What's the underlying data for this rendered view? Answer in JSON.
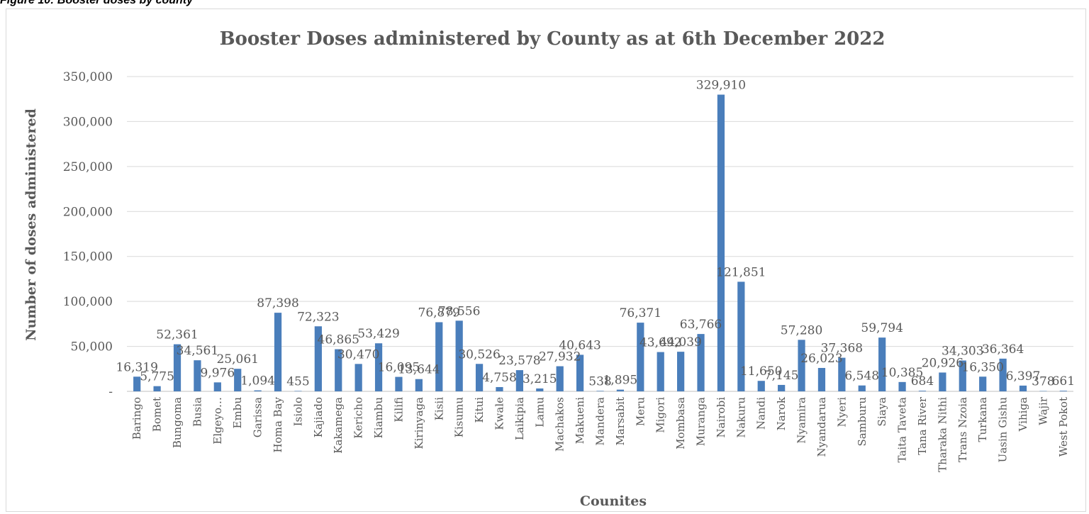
{
  "figure_caption": "Figure 10: Booster doses by county",
  "colors": {
    "bar": "#4a7ebb",
    "grid": "#d9d9d9",
    "text": "#595959",
    "axis": "#bfbfbf"
  },
  "chart_data": {
    "type": "bar",
    "title": "Booster Doses administered  by County as at 6th December 2022",
    "xlabel": "Counites",
    "ylabel": "Number of doses administered",
    "ylim": [
      0,
      350000
    ],
    "yticks": [
      0,
      50000,
      100000,
      150000,
      200000,
      250000,
      300000,
      350000
    ],
    "ytick_labels": [
      "-",
      "50,000",
      "100,000",
      "150,000",
      "200,000",
      "250,000",
      "300,000",
      "350,000"
    ],
    "grid": true,
    "legend": "none",
    "categories": [
      "Baringo",
      "Bomet",
      "Bungoma",
      "Busia",
      "Elgeyo…",
      "Embu",
      "Garissa",
      "Homa Bay",
      "Isiolo",
      "Kajiado",
      "Kakamega",
      "Kericho",
      "Kiambu",
      "Kilifi",
      "Kirinyaga",
      "Kisii",
      "Kisumu",
      "Kitui",
      "Kwale",
      "Laikipia",
      "Lamu",
      "Machakos",
      "Makueni",
      "Mandera",
      "Marsabit",
      "Meru",
      "Migori",
      "Mombasa",
      "Muranga",
      "Nairobi",
      "Nakuru",
      "Nandi",
      "Narok",
      "Nyamira",
      "Nyandarua",
      "Nyeri",
      "Samburu",
      "Siaya",
      "Taita Taveta",
      "Tana River",
      "Tharaka Nithi",
      "Trans Nzoia",
      "Turkana",
      "Uasin Gishu",
      "Vihiga",
      "Wajir",
      "West Pokot"
    ],
    "values": [
      16319,
      5775,
      52361,
      34561,
      9976,
      25061,
      1094,
      87398,
      455,
      72323,
      46865,
      30470,
      53429,
      16095,
      13644,
      76879,
      78556,
      30526,
      4758,
      23578,
      3215,
      27932,
      40643,
      538,
      1895,
      76371,
      43692,
      44039,
      63766,
      329910,
      121851,
      11650,
      7145,
      57280,
      26023,
      37368,
      6548,
      59794,
      10385,
      684,
      20926,
      34303,
      16350,
      36364,
      6397,
      378,
      661
    ],
    "data_labels": [
      "16,319",
      "5,775",
      "52,361",
      "34,561",
      "9,976",
      "25,061",
      "1,094",
      "87,398",
      "455",
      "72,323",
      "46,865",
      "30,470",
      "53,429",
      "16,095",
      "13,644",
      "76,879",
      "78,556",
      "30,526",
      "4,758",
      "23,578",
      "3,215",
      "27,932",
      "40,643",
      "538",
      "1,895",
      "76,371",
      "43,692",
      "44,039",
      "63,766",
      "329,910",
      "121,851",
      "11,650",
      "7,145",
      "57,280",
      "26,023",
      "37,368",
      "6,548",
      "59,794",
      "10,385",
      "684",
      "20,926",
      "34,303",
      "16,350",
      "36,364",
      "6,397",
      "378",
      "661"
    ]
  }
}
